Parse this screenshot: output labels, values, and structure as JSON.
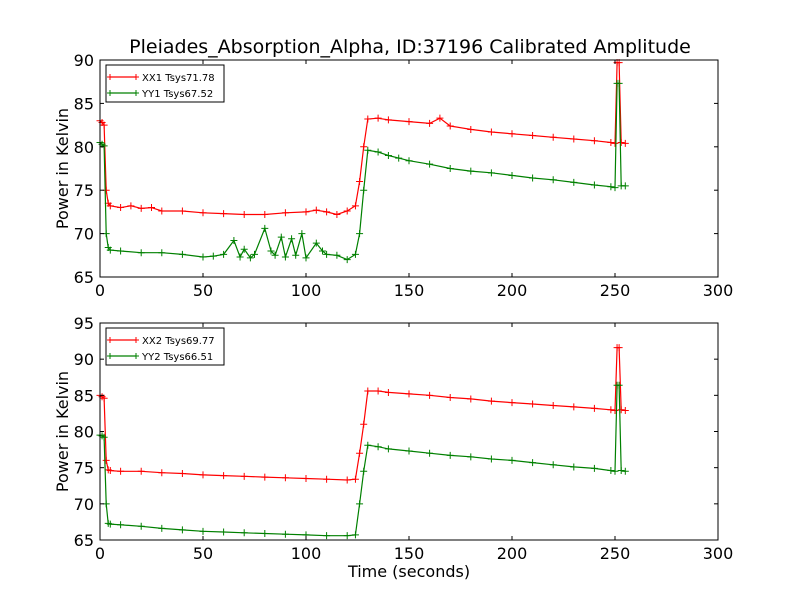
{
  "figure": {
    "title": "Pleiades_Absorption_Alpha, ID:37196 Calibrated Amplitude"
  },
  "chart_data": [
    {
      "type": "line",
      "title": "Pleiades_Absorption_Alpha, ID:37196 Calibrated Amplitude",
      "xlabel": "",
      "ylabel": "Power in Kelvin",
      "xlim": [
        0,
        300
      ],
      "ylim": [
        65,
        90
      ],
      "xticks": [
        0,
        50,
        100,
        150,
        200,
        250,
        300
      ],
      "yticks": [
        65,
        70,
        75,
        80,
        85,
        90
      ],
      "grid": false,
      "legend_position": "top-left",
      "marker": "+",
      "series": [
        {
          "name": "XX1 Tsys71.78",
          "color": "#ff0000",
          "points": [
            [
              0,
              83
            ],
            [
              1,
              82.8
            ],
            [
              2,
              82.5
            ],
            [
              3,
              75
            ],
            [
              4,
              73.5
            ],
            [
              5,
              73.2
            ],
            [
              10,
              73
            ],
            [
              15,
              73.2
            ],
            [
              20,
              72.9
            ],
            [
              25,
              73
            ],
            [
              30,
              72.6
            ],
            [
              40,
              72.6
            ],
            [
              50,
              72.4
            ],
            [
              60,
              72.3
            ],
            [
              70,
              72.2
            ],
            [
              80,
              72.2
            ],
            [
              90,
              72.4
            ],
            [
              100,
              72.5
            ],
            [
              105,
              72.7
            ],
            [
              110,
              72.5
            ],
            [
              115,
              72.2
            ],
            [
              120,
              72.6
            ],
            [
              124,
              73.2
            ],
            [
              126,
              76
            ],
            [
              128,
              80
            ],
            [
              130,
              83.2
            ],
            [
              135,
              83.3
            ],
            [
              140,
              83.1
            ],
            [
              150,
              82.9
            ],
            [
              160,
              82.7
            ],
            [
              165,
              83.3
            ],
            [
              170,
              82.4
            ],
            [
              180,
              82
            ],
            [
              190,
              81.7
            ],
            [
              200,
              81.5
            ],
            [
              210,
              81.3
            ],
            [
              220,
              81.1
            ],
            [
              230,
              80.9
            ],
            [
              240,
              80.7
            ],
            [
              248,
              80.5
            ],
            [
              250,
              80.4
            ],
            [
              251,
              89.7
            ],
            [
              252,
              89.7
            ],
            [
              253,
              80.5
            ],
            [
              255,
              80.4
            ]
          ]
        },
        {
          "name": "YY1 Tsys67.52",
          "color": "#008000",
          "points": [
            [
              0,
              80.5
            ],
            [
              1,
              80.3
            ],
            [
              2,
              80.1
            ],
            [
              3,
              70
            ],
            [
              4,
              68.4
            ],
            [
              5,
              68.1
            ],
            [
              10,
              68
            ],
            [
              20,
              67.8
            ],
            [
              30,
              67.8
            ],
            [
              40,
              67.6
            ],
            [
              50,
              67.3
            ],
            [
              55,
              67.4
            ],
            [
              60,
              67.6
            ],
            [
              65,
              69.2
            ],
            [
              68,
              67.3
            ],
            [
              70,
              68.2
            ],
            [
              73,
              67.2
            ],
            [
              75,
              67.6
            ],
            [
              80,
              70.6
            ],
            [
              83,
              68
            ],
            [
              85,
              67.5
            ],
            [
              88,
              69.6
            ],
            [
              90,
              67.3
            ],
            [
              93,
              69.4
            ],
            [
              95,
              67.5
            ],
            [
              98,
              70
            ],
            [
              100,
              67.2
            ],
            [
              105,
              68.9
            ],
            [
              108,
              68
            ],
            [
              110,
              67.6
            ],
            [
              115,
              67.5
            ],
            [
              120,
              67
            ],
            [
              124,
              67.6
            ],
            [
              126,
              70
            ],
            [
              128,
              75
            ],
            [
              130,
              79.6
            ],
            [
              135,
              79.4
            ],
            [
              140,
              79
            ],
            [
              145,
              78.7
            ],
            [
              150,
              78.4
            ],
            [
              160,
              78
            ],
            [
              170,
              77.5
            ],
            [
              180,
              77.2
            ],
            [
              190,
              77
            ],
            [
              200,
              76.7
            ],
            [
              210,
              76.4
            ],
            [
              220,
              76.2
            ],
            [
              230,
              75.9
            ],
            [
              240,
              75.6
            ],
            [
              248,
              75.4
            ],
            [
              250,
              75.3
            ],
            [
              251,
              87.3
            ],
            [
              252,
              87.3
            ],
            [
              253,
              75.5
            ],
            [
              255,
              75.5
            ]
          ]
        }
      ]
    },
    {
      "type": "line",
      "title": "",
      "xlabel": "Time (seconds)",
      "ylabel": "Power in Kelvin",
      "xlim": [
        0,
        300
      ],
      "ylim": [
        65,
        95
      ],
      "xticks": [
        0,
        50,
        100,
        150,
        200,
        250,
        300
      ],
      "yticks": [
        65,
        70,
        75,
        80,
        85,
        90,
        95
      ],
      "grid": false,
      "legend_position": "top-left",
      "marker": "+",
      "series": [
        {
          "name": "XX2 Tsys69.77",
          "color": "#ff0000",
          "points": [
            [
              0,
              85
            ],
            [
              1,
              84.8
            ],
            [
              2,
              84.6
            ],
            [
              3,
              76
            ],
            [
              4,
              74.7
            ],
            [
              5,
              74.6
            ],
            [
              10,
              74.5
            ],
            [
              20,
              74.5
            ],
            [
              30,
              74.3
            ],
            [
              40,
              74.2
            ],
            [
              50,
              74
            ],
            [
              60,
              73.9
            ],
            [
              70,
              73.8
            ],
            [
              80,
              73.7
            ],
            [
              90,
              73.6
            ],
            [
              100,
              73.5
            ],
            [
              110,
              73.4
            ],
            [
              120,
              73.3
            ],
            [
              124,
              73.4
            ],
            [
              126,
              77
            ],
            [
              128,
              81
            ],
            [
              130,
              85.6
            ],
            [
              135,
              85.6
            ],
            [
              140,
              85.4
            ],
            [
              150,
              85.2
            ],
            [
              160,
              85
            ],
            [
              170,
              84.7
            ],
            [
              180,
              84.5
            ],
            [
              190,
              84.2
            ],
            [
              200,
              84
            ],
            [
              210,
              83.8
            ],
            [
              220,
              83.6
            ],
            [
              230,
              83.4
            ],
            [
              240,
              83.2
            ],
            [
              248,
              83
            ],
            [
              250,
              82.9
            ],
            [
              251,
              91.6
            ],
            [
              252,
              91.6
            ],
            [
              253,
              83
            ],
            [
              255,
              82.9
            ]
          ]
        },
        {
          "name": "YY2 Tsys66.51",
          "color": "#008000",
          "points": [
            [
              0,
              79.5
            ],
            [
              1,
              79.4
            ],
            [
              2,
              79.2
            ],
            [
              3,
              70
            ],
            [
              4,
              67.3
            ],
            [
              5,
              67.2
            ],
            [
              10,
              67.1
            ],
            [
              20,
              66.9
            ],
            [
              30,
              66.6
            ],
            [
              40,
              66.4
            ],
            [
              50,
              66.2
            ],
            [
              60,
              66.1
            ],
            [
              70,
              66
            ],
            [
              80,
              65.9
            ],
            [
              90,
              65.8
            ],
            [
              100,
              65.7
            ],
            [
              110,
              65.6
            ],
            [
              120,
              65.6
            ],
            [
              124,
              65.7
            ],
            [
              126,
              70
            ],
            [
              128,
              74.5
            ],
            [
              130,
              78.1
            ],
            [
              135,
              77.9
            ],
            [
              140,
              77.6
            ],
            [
              150,
              77.3
            ],
            [
              160,
              77
            ],
            [
              170,
              76.7
            ],
            [
              180,
              76.5
            ],
            [
              190,
              76.2
            ],
            [
              200,
              76
            ],
            [
              210,
              75.7
            ],
            [
              220,
              75.4
            ],
            [
              230,
              75.1
            ],
            [
              240,
              74.9
            ],
            [
              248,
              74.6
            ],
            [
              250,
              74.5
            ],
            [
              251,
              86.4
            ],
            [
              252,
              86.4
            ],
            [
              253,
              74.6
            ],
            [
              255,
              74.5
            ]
          ]
        }
      ]
    }
  ]
}
